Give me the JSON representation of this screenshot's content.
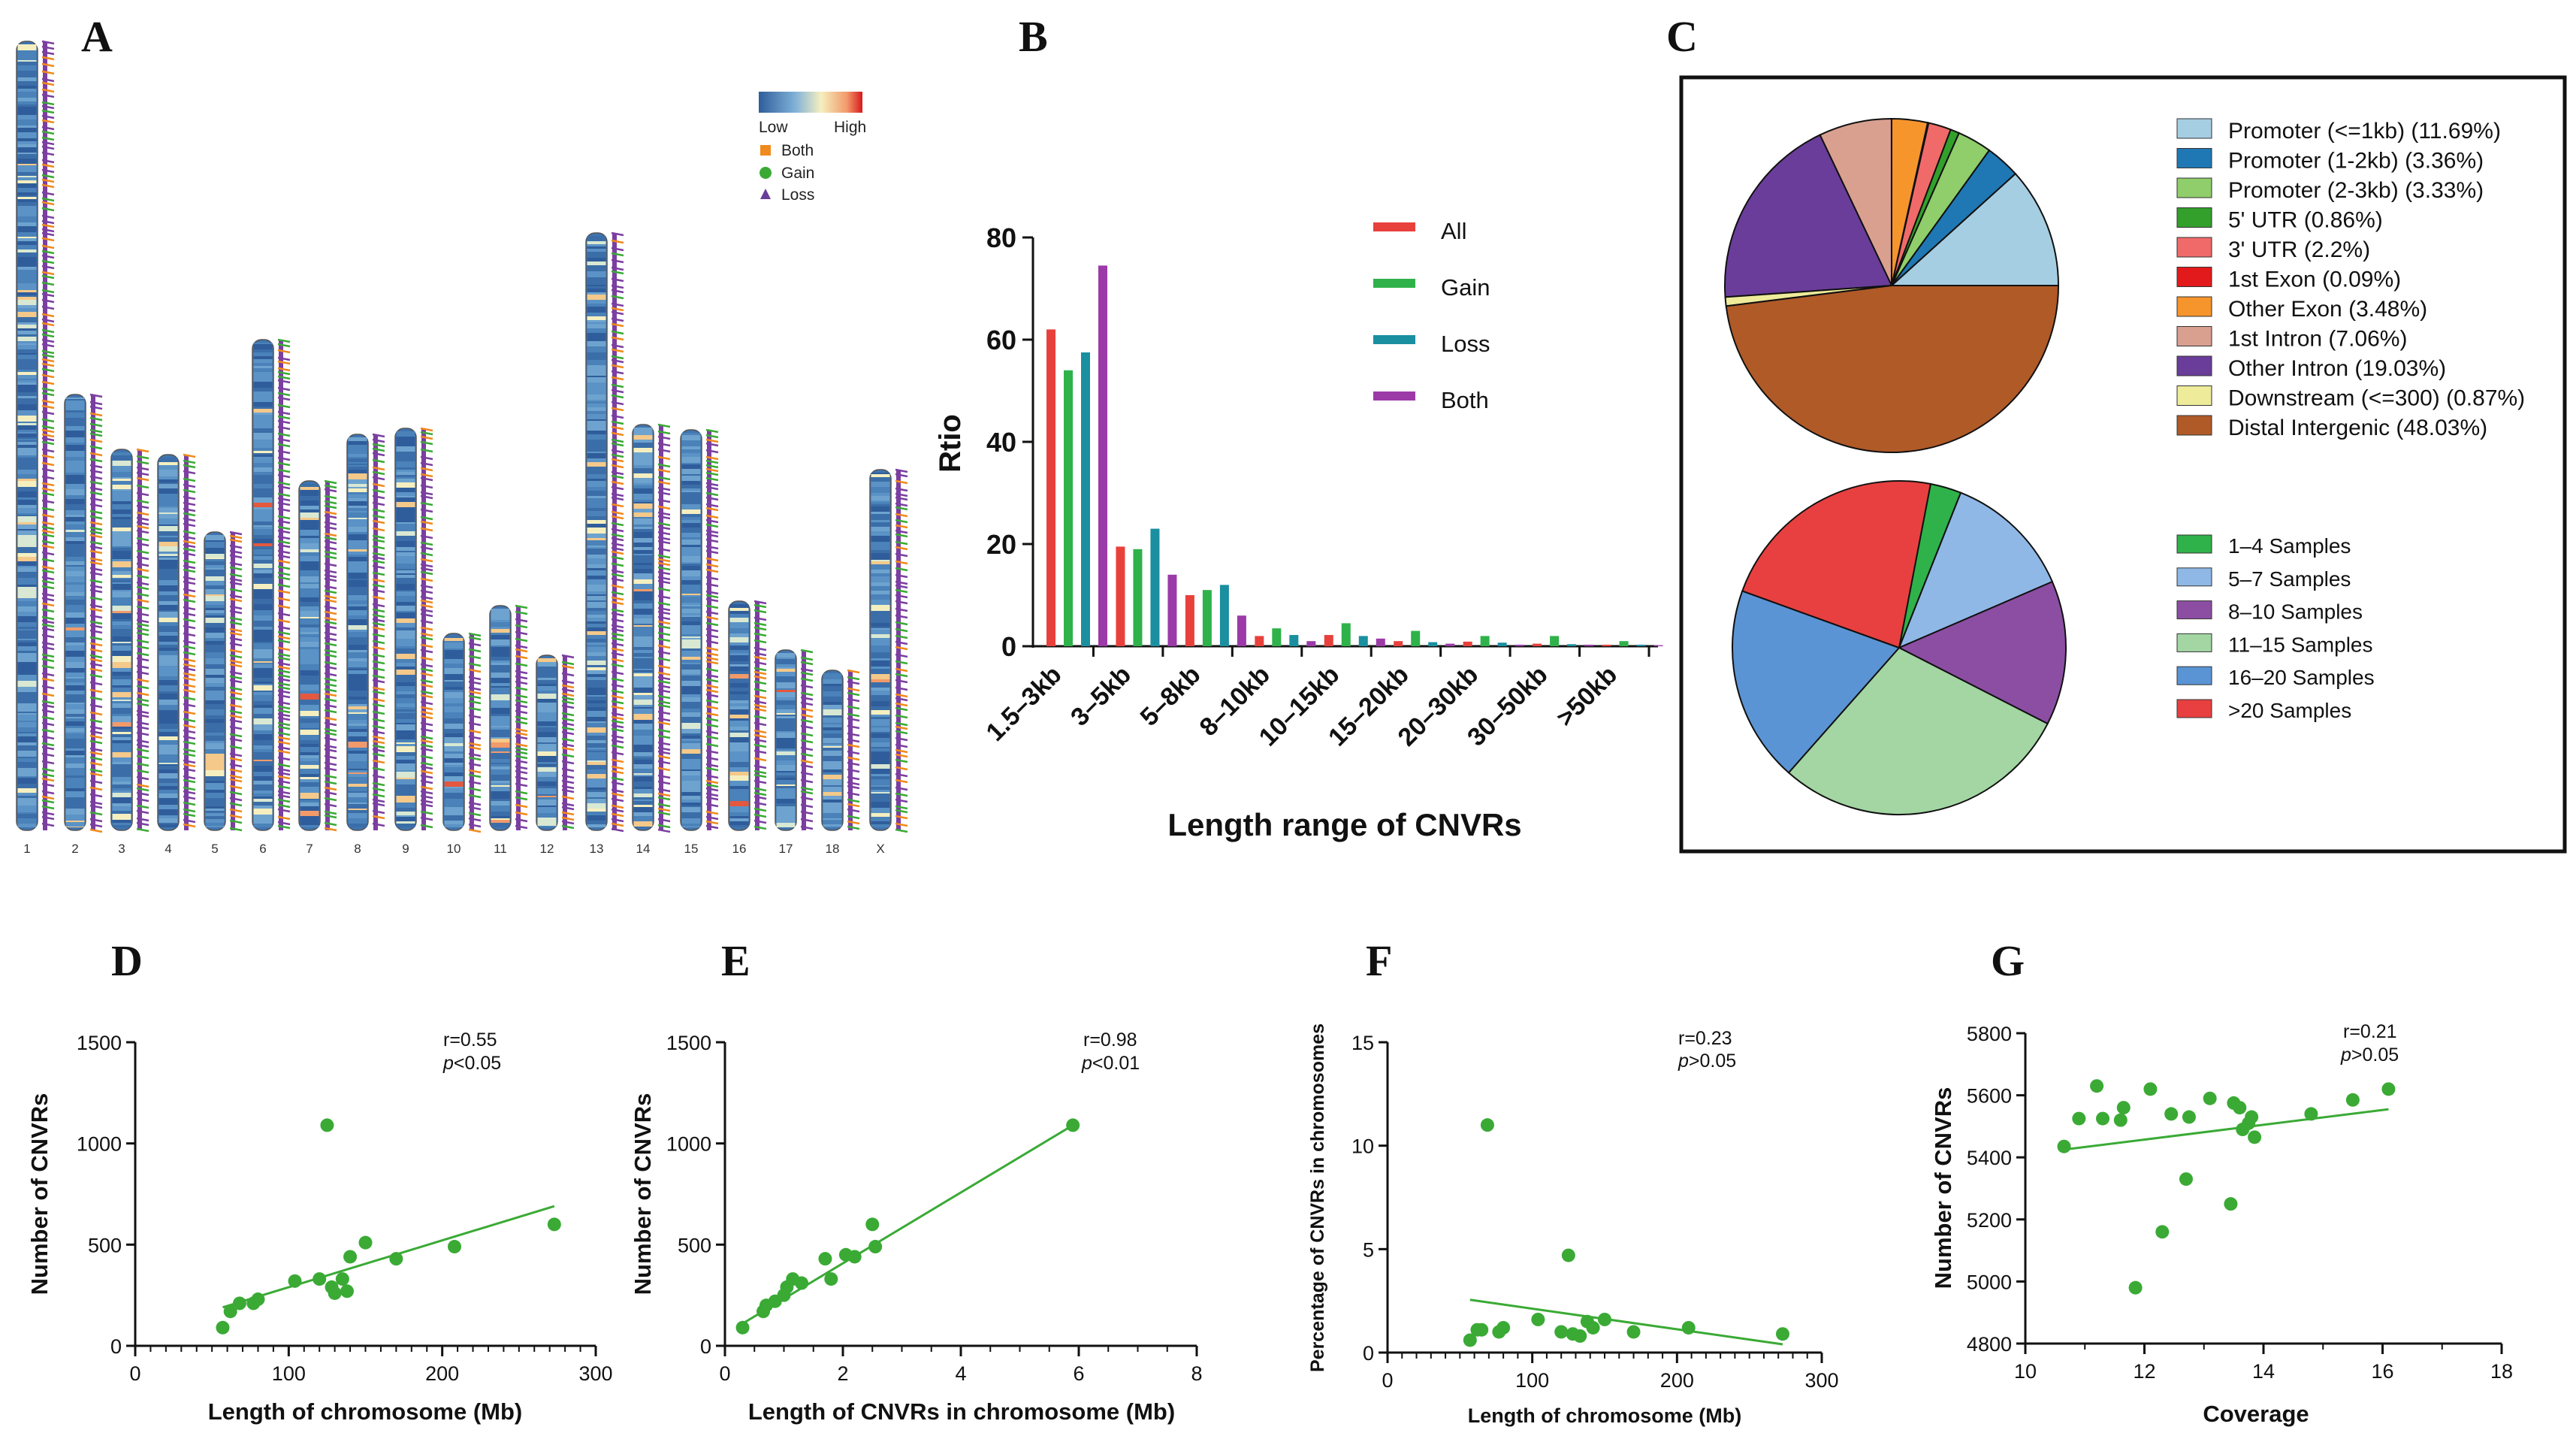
{
  "panels": {
    "A": "A",
    "B": "B",
    "C": "C",
    "D": "D",
    "E": "E",
    "F": "F",
    "G": "G"
  },
  "colors": {
    "green": "#3aaa35",
    "orange": "#f08a1c",
    "purple": "#7b3fa0",
    "black": "#111111"
  },
  "chart_data": [
    {
      "id": "A",
      "type": "other",
      "title": "",
      "chromosomes": [
        "1",
        "2",
        "3",
        "4",
        "5",
        "6",
        "7",
        "8",
        "9",
        "10",
        "11",
        "12",
        "13",
        "14",
        "15",
        "16",
        "17",
        "18",
        "X"
      ],
      "legend": {
        "scale_low": "Low",
        "scale_high": "High",
        "items": [
          {
            "label": "Both",
            "color": "#f08a1c",
            "marker": "square"
          },
          {
            "label": "Gain",
            "color": "#3aaa35",
            "marker": "circle"
          },
          {
            "label": "Loss",
            "color": "#6a3d9a",
            "marker": "triangle"
          }
        ]
      }
    },
    {
      "id": "B",
      "type": "bar",
      "xlabel": "Length range  of CNVRs",
      "ylabel": "Rtio",
      "ylim": [
        0,
        80
      ],
      "yticks": [
        0,
        20,
        40,
        60,
        80
      ],
      "categories": [
        "1.5–3kb",
        "3–5kb",
        "5–8kb",
        "8–10kb",
        "10–15kb",
        "15–20kb",
        "20–30kb",
        "30–50kb",
        ">50kb"
      ],
      "series": [
        {
          "name": "All",
          "color": "#e8413c",
          "values": [
            62,
            19.5,
            10,
            2,
            2.2,
            1,
            0.9,
            0.5,
            0.3
          ]
        },
        {
          "name": "Gain",
          "color": "#2fb24a",
          "values": [
            54,
            19,
            11,
            3.5,
            4.5,
            3,
            2,
            2,
            1
          ]
        },
        {
          "name": "Loss",
          "color": "#1a8fa0",
          "values": [
            57.5,
            23,
            12,
            2.2,
            2,
            0.8,
            0.7,
            0.4,
            0.3
          ]
        },
        {
          "name": "Both",
          "color": "#9c3aa8",
          "values": [
            74.5,
            14,
            6,
            1,
            1.5,
            0.5,
            0.3,
            0.3,
            0.2
          ]
        }
      ]
    },
    {
      "id": "C1",
      "type": "pie",
      "labels": [
        "Promoter (<=1kb) (11.69%)",
        "Promoter (1-2kb) (3.36%)",
        "Promoter (2-3kb) (3.33%)",
        "5' UTR (0.86%)",
        "3' UTR (2.2%)",
        "1st Exon (0.09%)",
        "Other Exon (3.48%)",
        "1st Intron (7.06%)",
        "Other Intron (19.03%)",
        "Downstream (<=300) (0.87%)",
        "Distal Intergenic (48.03%)"
      ],
      "values": [
        11.69,
        3.36,
        3.33,
        0.86,
        2.2,
        0.09,
        3.48,
        7.06,
        19.03,
        0.87,
        48.03
      ],
      "colors": [
        "#a6cee3",
        "#1f78b4",
        "#8fce6a",
        "#33a02c",
        "#f06a6a",
        "#e31a1c",
        "#f7952d",
        "#d9a090",
        "#6a3d9a",
        "#eeeb9a",
        "#b05a28"
      ]
    },
    {
      "id": "C2",
      "type": "pie",
      "labels": [
        "1–4 Samples",
        "5–7 Samples",
        "8–10 Samples",
        "11–15 Samples",
        "16–20 Samples",
        ">20 Samples"
      ],
      "values": [
        3,
        12.5,
        14,
        29,
        19,
        22.5
      ],
      "colors": [
        "#2fb24a",
        "#8fb8e6",
        "#8c4ea3",
        "#a3d6a3",
        "#5a94d4",
        "#e84040"
      ]
    },
    {
      "id": "D",
      "type": "scatter",
      "xlabel": "Length of  chromosome (Mb)",
      "ylabel": "Number of CNVRs",
      "xlim": [
        0,
        300
      ],
      "ylim": [
        0,
        1500
      ],
      "xticks": [
        0,
        100,
        200,
        300
      ],
      "yticks": [
        0,
        500,
        1000,
        1500
      ],
      "annotation_r": "r=0.55",
      "annotation_p_prefix": "p",
      "annotation_p_suffix": "<0.05",
      "points": [
        [
          125,
          1090
        ],
        [
          273,
          600
        ],
        [
          208,
          490
        ],
        [
          170,
          430
        ],
        [
          150,
          510
        ],
        [
          140,
          440
        ],
        [
          138,
          270
        ],
        [
          135,
          330
        ],
        [
          128,
          290
        ],
        [
          130,
          260
        ],
        [
          120,
          330
        ],
        [
          104,
          320
        ],
        [
          80,
          230
        ],
        [
          77,
          210
        ],
        [
          68,
          210
        ],
        [
          62,
          170
        ],
        [
          57,
          90
        ]
      ],
      "fit": [
        [
          57,
          190
        ],
        [
          273,
          690
        ]
      ]
    },
    {
      "id": "E",
      "type": "scatter",
      "xlabel": "Length of CNVRs in chromosome (Mb)",
      "ylabel": "Number of CNVRs",
      "xlim": [
        0,
        8
      ],
      "ylim": [
        0,
        1500
      ],
      "xticks": [
        0,
        2,
        4,
        6,
        8
      ],
      "yticks": [
        0,
        500,
        1000,
        1500
      ],
      "annotation_r": "r=0.98",
      "annotation_p_prefix": "p",
      "annotation_p_suffix": "<0.01",
      "points": [
        [
          5.9,
          1090
        ],
        [
          2.5,
          600
        ],
        [
          2.55,
          490
        ],
        [
          2.2,
          440
        ],
        [
          2.05,
          450
        ],
        [
          1.7,
          430
        ],
        [
          1.8,
          330
        ],
        [
          1.3,
          310
        ],
        [
          1.15,
          330
        ],
        [
          1.05,
          290
        ],
        [
          1.0,
          250
        ],
        [
          0.85,
          220
        ],
        [
          0.7,
          200
        ],
        [
          0.65,
          170
        ],
        [
          0.3,
          90
        ]
      ],
      "fit": [
        [
          0.3,
          110
        ],
        [
          5.9,
          1090
        ]
      ]
    },
    {
      "id": "F",
      "type": "scatter",
      "xlabel": "Length of  chromosome (Mb)",
      "ylabel": "Percentage of CNVRs in chromosomes",
      "xlim": [
        0,
        300
      ],
      "ylim": [
        0,
        15
      ],
      "xticks": [
        0,
        100,
        200,
        300
      ],
      "yticks": [
        0,
        5,
        10,
        15
      ],
      "annotation_r": "r=0.23",
      "annotation_p_prefix": "p",
      "annotation_p_suffix": ">0.05",
      "points": [
        [
          69,
          11
        ],
        [
          125,
          4.7
        ],
        [
          57,
          0.6
        ],
        [
          62,
          1.1
        ],
        [
          65,
          1.1
        ],
        [
          77,
          1.0
        ],
        [
          80,
          1.2
        ],
        [
          104,
          1.6
        ],
        [
          120,
          1.0
        ],
        [
          128,
          0.9
        ],
        [
          133,
          0.8
        ],
        [
          138,
          1.5
        ],
        [
          142,
          1.2
        ],
        [
          150,
          1.6
        ],
        [
          170,
          1.0
        ],
        [
          208,
          1.2
        ],
        [
          273,
          0.9
        ]
      ],
      "fit": [
        [
          57,
          2.55
        ],
        [
          273,
          0.4
        ]
      ]
    },
    {
      "id": "G",
      "type": "scatter",
      "xlabel": "Coverage",
      "ylabel": "Number of CNVRs",
      "xlim": [
        10,
        18
      ],
      "ylim": [
        4800,
        5800
      ],
      "xticks": [
        10,
        12,
        14,
        16,
        18
      ],
      "yticks": [
        4800,
        5000,
        5200,
        5400,
        5600,
        5800
      ],
      "annotation_r": "r=0.21",
      "annotation_p_prefix": "p",
      "annotation_p_suffix": ">0.05",
      "points": [
        [
          10.65,
          5435
        ],
        [
          10.9,
          5525
        ],
        [
          11.2,
          5630
        ],
        [
          11.3,
          5525
        ],
        [
          11.6,
          5520
        ],
        [
          11.65,
          5560
        ],
        [
          11.85,
          4980
        ],
        [
          12.1,
          5620
        ],
        [
          12.3,
          5160
        ],
        [
          12.45,
          5540
        ],
        [
          12.7,
          5330
        ],
        [
          12.75,
          5530
        ],
        [
          13.1,
          5590
        ],
        [
          13.45,
          5250
        ],
        [
          13.5,
          5575
        ],
        [
          13.6,
          5560
        ],
        [
          13.65,
          5490
        ],
        [
          13.75,
          5510
        ],
        [
          13.8,
          5530
        ],
        [
          13.85,
          5465
        ],
        [
          14.8,
          5540
        ],
        [
          15.5,
          5585
        ],
        [
          16.1,
          5620
        ]
      ],
      "fit": [
        [
          10.65,
          5425
        ],
        [
          16.1,
          5555
        ]
      ]
    }
  ]
}
